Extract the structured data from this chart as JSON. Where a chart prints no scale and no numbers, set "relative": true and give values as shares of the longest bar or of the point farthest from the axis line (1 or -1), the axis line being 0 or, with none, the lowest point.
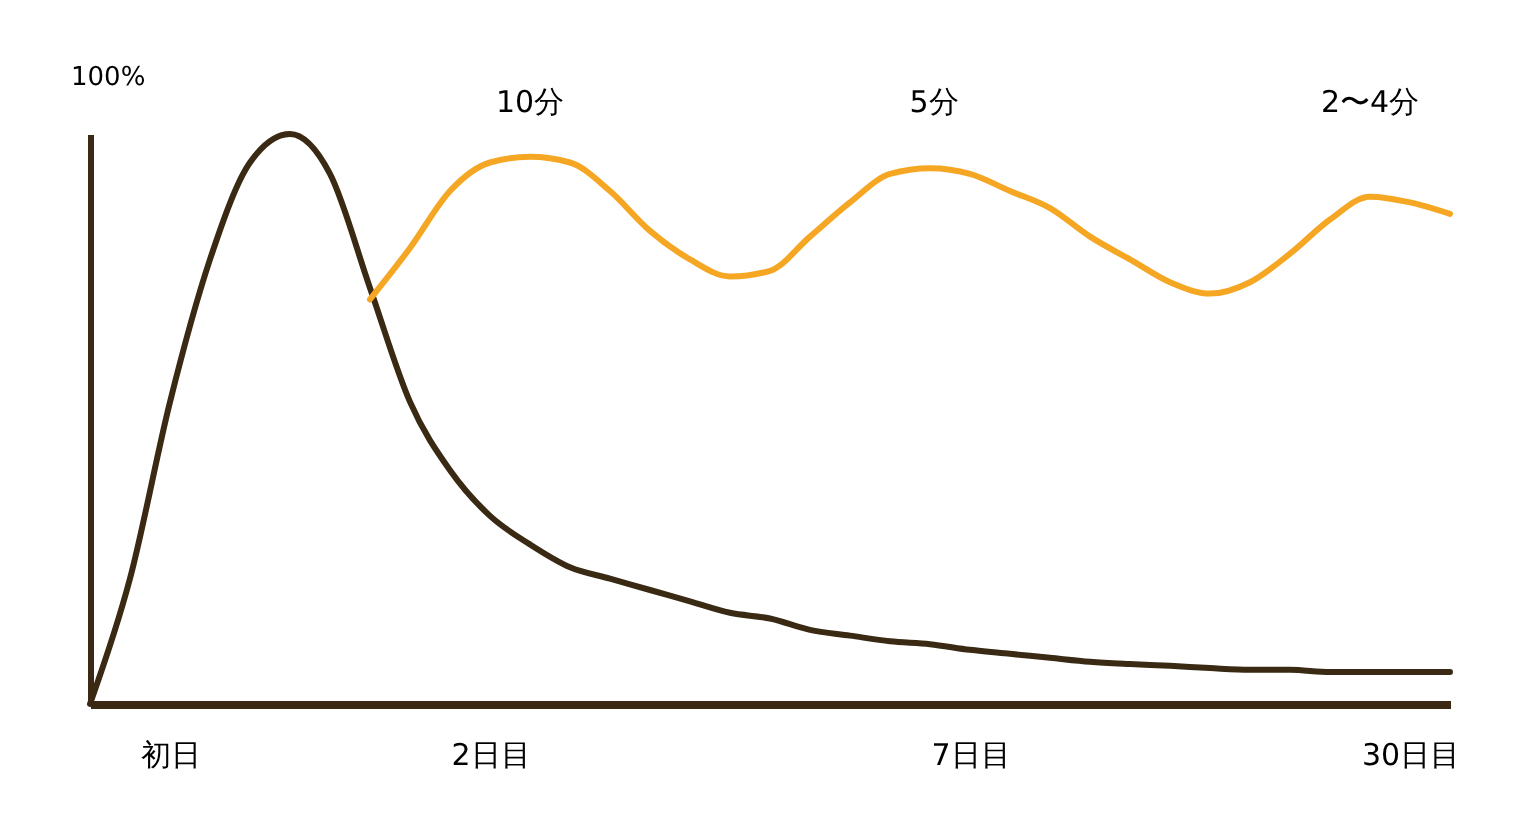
{
  "chart_data": {
    "type": "line",
    "relative": true,
    "ylabel": "100%",
    "categories": [
      null,
      null,
      "初日",
      null,
      null,
      null,
      null,
      null,
      null,
      null,
      "2日目",
      null,
      null,
      null,
      null,
      null,
      null,
      null,
      null,
      null,
      null,
      null,
      "7日目",
      null,
      null,
      null,
      null,
      null,
      null,
      null,
      null,
      null,
      null,
      "30日目",
      null
    ],
    "series": [
      {
        "color": "#3a2a14",
        "values": [
          0,
          0.22,
          0.53,
          0.78,
          0.95,
          1.0,
          0.93,
          0.73,
          0.53,
          0.41,
          0.33,
          0.28,
          0.24,
          0.22,
          0.2,
          0.18,
          0.16,
          0.15,
          0.13,
          0.12,
          0.11,
          0.105,
          0.095,
          0.088,
          0.081,
          0.074,
          0.07,
          0.067,
          0.063,
          0.06,
          0.06,
          0.056,
          0.056,
          0.056,
          0.056
        ]
      },
      {
        "color": "#f5a623",
        "values": [
          null,
          null,
          null,
          null,
          null,
          null,
          null,
          0.71,
          0.8,
          0.9,
          0.95,
          0.96,
          0.95,
          0.9,
          0.83,
          0.78,
          0.75,
          0.76,
          0.82,
          0.88,
          0.93,
          0.94,
          0.93,
          0.9,
          0.87,
          0.82,
          0.78,
          0.74,
          0.72,
          0.74,
          0.79,
          0.85,
          0.89,
          0.88,
          0.86
        ]
      }
    ],
    "annotations": [
      "10分",
      "5分",
      "2〜4分"
    ],
    "grid": false,
    "legend": false,
    "marker": "none",
    "line_style": "solid"
  }
}
